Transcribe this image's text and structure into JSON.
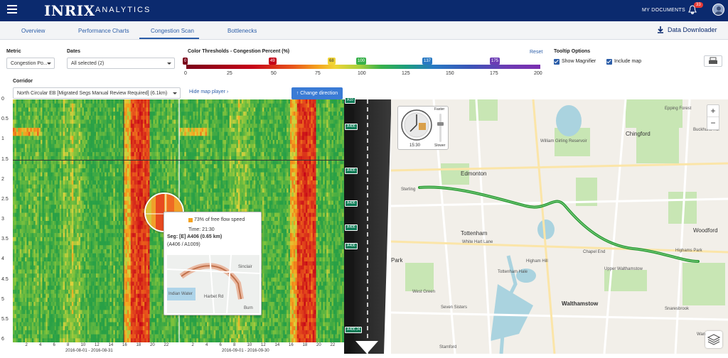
{
  "header": {
    "logo": "INRIX",
    "product": "ANALYTICS",
    "my_documents": "MY DOCUMENTS",
    "notification_count": "33"
  },
  "tabs": [
    {
      "label": "Overview"
    },
    {
      "label": "Performance Charts"
    },
    {
      "label": "Congestion Scan"
    },
    {
      "label": "Bottlenecks"
    }
  ],
  "active_tab": "Congestion Scan",
  "data_downloader": "Data Downloader",
  "controls": {
    "metric_label": "Metric",
    "metric_value": "Congestion Po...",
    "dates_label": "Dates",
    "dates_value": "All selected (2)",
    "thresholds_label": "Color Thresholds - Congestion Percent (%)",
    "reset": "Reset",
    "threshold_markers": [
      "0",
      "49",
      "68",
      "100",
      "137",
      "175"
    ],
    "threshold_ticks": [
      "0",
      "25",
      "50",
      "75",
      "100",
      "125",
      "150",
      "175",
      "200"
    ],
    "tooltip_options_label": "Tooltip Options",
    "show_magnifier": "Show Magnifier",
    "include_map": "Include map",
    "corridor_label": "Corridor",
    "corridor_value": "North Circular EB [Migrated Segs Manual Review Required] (6.1km)",
    "hide_map_player": "Hide map player",
    "change_direction": "Change direction"
  },
  "chart_data": {
    "type": "heatmap",
    "y_ticks": [
      "0",
      "0.5",
      "1",
      "1.5",
      "2",
      "2.5",
      "3",
      "3.5",
      "4",
      "4.5",
      "5",
      "5.5",
      "6"
    ],
    "x_ticks": [
      "2",
      "4",
      "6",
      "8",
      "10",
      "12",
      "14",
      "16",
      "18",
      "20",
      "22",
      "2",
      "4",
      "6",
      "8",
      "10",
      "12",
      "14",
      "16",
      "18",
      "20",
      "22"
    ],
    "date_ranges": [
      "2016-08-01 - 2016-08-31",
      "2016-09-01 - 2016-09-30"
    ],
    "ylim": [
      0,
      6
    ],
    "hot_hours": [
      17,
      18,
      19
    ]
  },
  "road_signs": [
    "A10",
    "A406",
    "A406",
    "A406",
    "A406",
    "A406",
    "A406 J4"
  ],
  "tooltip": {
    "speed": "73% of free flow speed",
    "time": "Time: 21:30",
    "seg": "Seg: [E] A406 (0.65 km)",
    "range": "(A406 / A1009)",
    "mini_map_labels": [
      "Sinclair",
      "Indian Water",
      "Harbet Rd",
      "Burn"
    ]
  },
  "map": {
    "clock_time": "15:30",
    "faster": "Faster",
    "slower": "Slower",
    "labels": [
      "Edmonton",
      "Tottenham",
      "Tottenham Hale",
      "Higham Hill",
      "Walthamstow",
      "Chingford",
      "Epping Forest",
      "Buckhurst Hill",
      "Woodford",
      "Snaresbrook",
      "Wanstead",
      "West Green",
      "Seven Sisters",
      "Stamford",
      "Chapel End",
      "Upper Walthamstow",
      "Highams Park",
      "William Girling Reservoir",
      "White Hart Lane",
      "Park",
      "Sterling"
    ],
    "zoom_in": "+",
    "zoom_out": "−"
  }
}
